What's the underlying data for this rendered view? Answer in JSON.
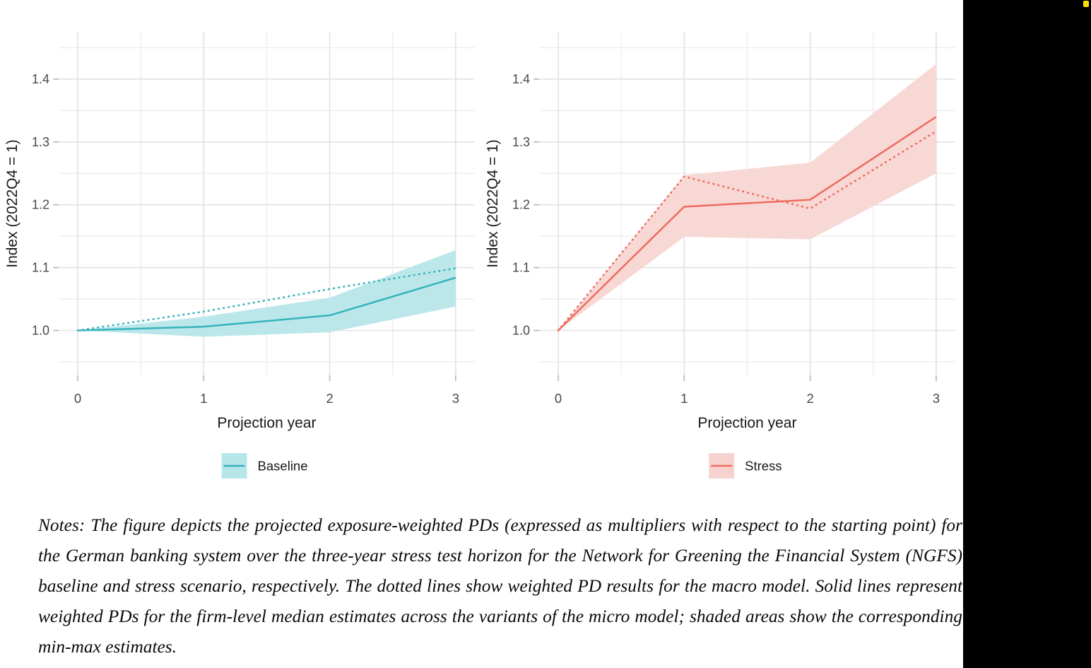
{
  "page": {
    "background_color": "#ffffff",
    "black_strip_color": "#000000",
    "yellow_marker_color": "#fbe006"
  },
  "grid": {
    "major_color": "#e2e2e2",
    "minor_color": "#eeeeee",
    "tick_color": "#b3b3b3",
    "tick_label_color": "#4a4a4a",
    "axis_title_color": "#191919",
    "legend_text_color": "#1a1a1a"
  },
  "chart_data": [
    {
      "type": "line",
      "panel": "left",
      "legend_label": "Baseline",
      "xlabel": "Projection year",
      "ylabel": "Index (2022Q4 = 1)",
      "x_ticks": [
        0,
        1,
        2,
        3
      ],
      "y_ticks": [
        1.0,
        1.1,
        1.2,
        1.3,
        1.4
      ],
      "x_minor": [
        0.5,
        1.5,
        2.5
      ],
      "y_minor": [
        0.95,
        1.05,
        1.15,
        1.25,
        1.35,
        1.45
      ],
      "xlim": [
        -0.15,
        3.15
      ],
      "ylim": [
        0.928,
        1.475
      ],
      "x": [
        0,
        1,
        2,
        3
      ],
      "series": [
        {
          "name": "micro-model-median",
          "style": "solid",
          "values": [
            1.0,
            1.006,
            1.024,
            1.084
          ]
        },
        {
          "name": "macro-model",
          "style": "dotted",
          "values": [
            1.0,
            1.03,
            1.066,
            1.099
          ]
        }
      ],
      "band": {
        "name": "min-max-range",
        "lower": [
          1.0,
          0.99,
          0.997,
          1.038
        ],
        "upper": [
          1.0,
          1.022,
          1.052,
          1.128
        ]
      },
      "colors": {
        "line": "#35b3ba",
        "band": "#bce7ea",
        "legend_key": "#b7e6e9"
      }
    },
    {
      "type": "line",
      "panel": "right",
      "legend_label": "Stress",
      "xlabel": "Projection year",
      "ylabel": "Index (2022Q4 = 1)",
      "x_ticks": [
        0,
        1,
        2,
        3
      ],
      "y_ticks": [
        1.0,
        1.1,
        1.2,
        1.3,
        1.4
      ],
      "x_minor": [
        0.5,
        1.5,
        2.5
      ],
      "y_minor": [
        0.95,
        1.05,
        1.15,
        1.25,
        1.35,
        1.45
      ],
      "xlim": [
        -0.15,
        3.15
      ],
      "ylim": [
        0.928,
        1.475
      ],
      "x": [
        0,
        1,
        2,
        3
      ],
      "series": [
        {
          "name": "micro-model-median",
          "style": "solid",
          "values": [
            1.0,
            1.197,
            1.208,
            1.34
          ]
        },
        {
          "name": "macro-model",
          "style": "dotted",
          "values": [
            1.0,
            1.245,
            1.194,
            1.317
          ]
        }
      ],
      "band": {
        "name": "min-max-range",
        "lower": [
          1.0,
          1.149,
          1.145,
          1.25
        ],
        "upper": [
          1.0,
          1.247,
          1.267,
          1.424
        ]
      },
      "colors": {
        "line": "#ee6b60",
        "band": "#f8d8d4",
        "legend_key": "#f6d3cf"
      }
    }
  ],
  "notes": "Notes: The figure depicts the projected exposure-weighted PDs (expressed as multipliers with respect to the starting point) for the German banking system over the three-year stress test horizon for the Network for Greening the Financial System (NGFS) baseline and stress scenario, respectively. The dotted lines show weighted PD results for the macro model. Solid lines represent weighted PDs for the firm-level median estimates across the variants of the micro model; shaded areas show the corresponding min-max estimates."
}
